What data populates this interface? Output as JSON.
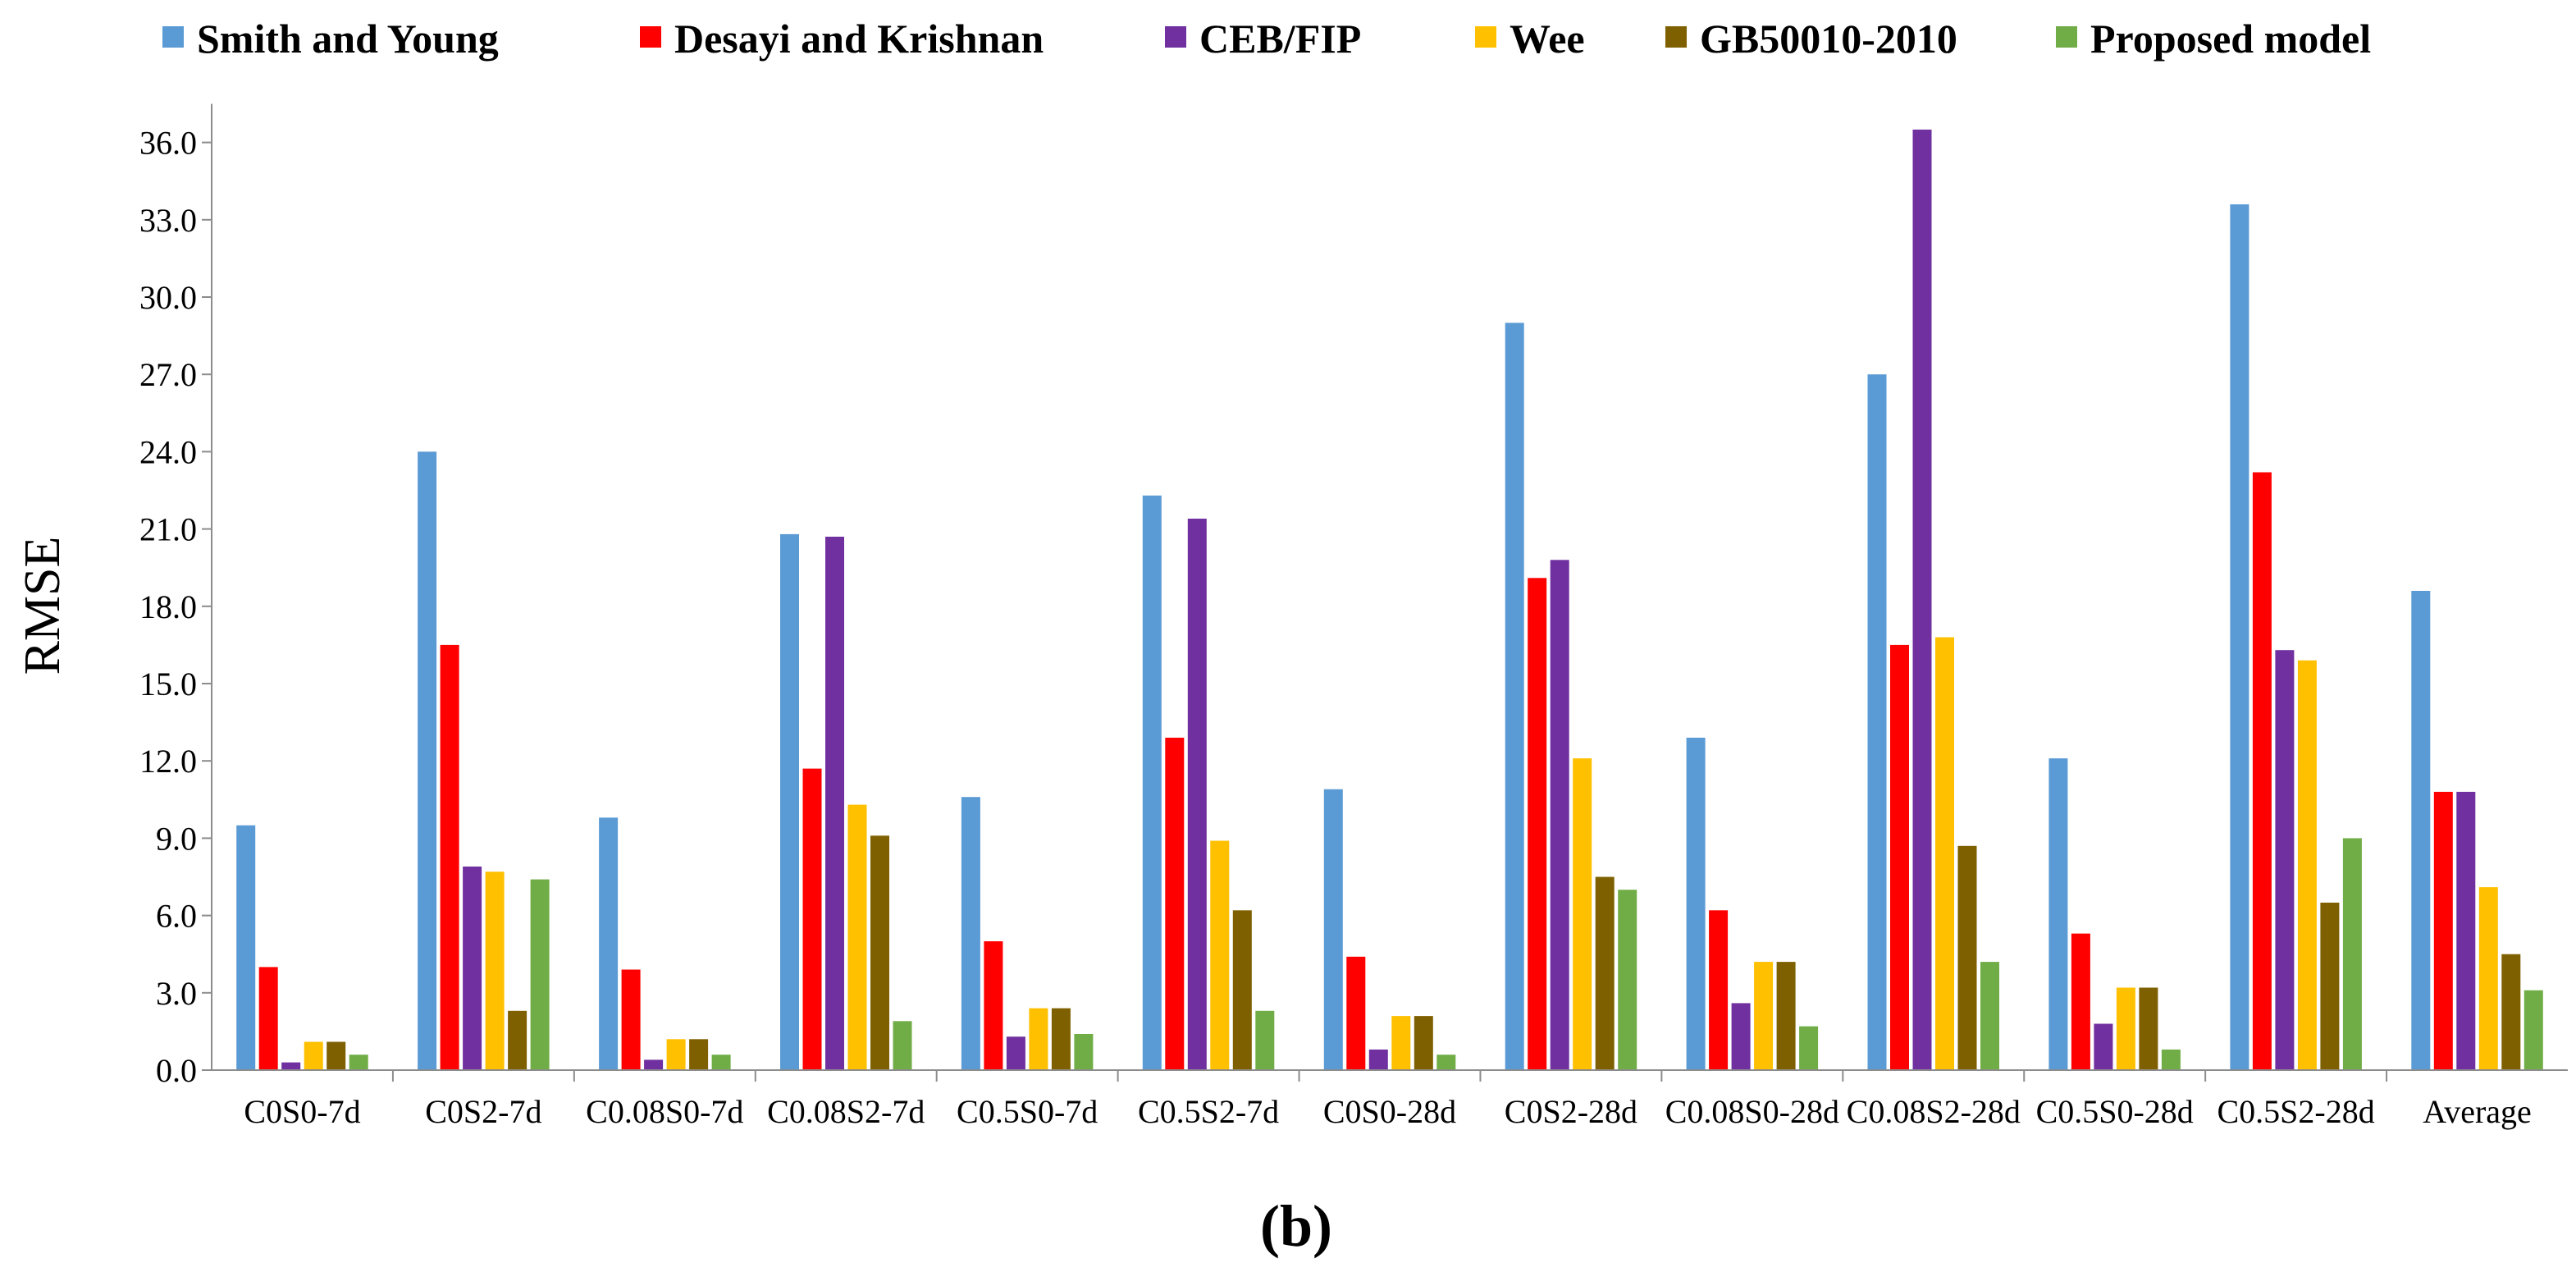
{
  "chart_data": {
    "type": "bar",
    "title": "",
    "xlabel": "",
    "ylabel": "RMSE",
    "panel_label": "(b)",
    "ylim": [
      0,
      37.5
    ],
    "yticks": [
      "0.0",
      "3.0",
      "6.0",
      "9.0",
      "12.0",
      "15.0",
      "18.0",
      "21.0",
      "24.0",
      "27.0",
      "30.0",
      "33.0",
      "36.0"
    ],
    "grid": false,
    "legend_position": "top",
    "categories": [
      "C0S0-7d",
      "C0S2-7d",
      "C0.08S0-7d",
      "C0.08S2-7d",
      "C0.5S0-7d",
      "C0.5S2-7d",
      "C0S0-28d",
      "C0S2-28d",
      "C0.08S0-28d",
      "C0.08S2-28d",
      "C0.5S0-28d",
      "C0.5S2-28d",
      "Average"
    ],
    "series": [
      {
        "name": "Smith and Young",
        "color": "#5B9BD5",
        "values": [
          9.5,
          24.0,
          9.8,
          20.8,
          10.6,
          22.3,
          10.9,
          29.0,
          12.9,
          27.0,
          12.1,
          33.6,
          18.6
        ]
      },
      {
        "name": "Desayi and Krishnan",
        "color": "#FF0000",
        "values": [
          4.0,
          16.5,
          3.9,
          11.7,
          5.0,
          12.9,
          4.4,
          19.1,
          6.2,
          16.5,
          5.3,
          23.2,
          10.8
        ]
      },
      {
        "name": "CEB/FIP",
        "color": "#7030A0",
        "values": [
          0.3,
          7.9,
          0.4,
          20.7,
          1.3,
          21.4,
          0.8,
          19.8,
          2.6,
          36.5,
          1.8,
          16.3,
          10.8
        ]
      },
      {
        "name": "Wee",
        "color": "#FFC000",
        "values": [
          1.1,
          7.7,
          1.2,
          10.3,
          2.4,
          8.9,
          2.1,
          12.1,
          4.2,
          16.8,
          3.2,
          15.9,
          7.1
        ]
      },
      {
        "name": "GB50010-2010",
        "color": "#7F6000",
        "values": [
          1.1,
          2.3,
          1.2,
          9.1,
          2.4,
          6.2,
          2.1,
          7.5,
          4.2,
          8.7,
          3.2,
          6.5,
          4.5
        ]
      },
      {
        "name": "Proposed model",
        "color": "#70AD47",
        "values": [
          0.6,
          7.4,
          0.6,
          1.9,
          1.4,
          2.3,
          0.6,
          7.0,
          1.7,
          4.2,
          0.8,
          9.0,
          3.1
        ]
      }
    ]
  }
}
